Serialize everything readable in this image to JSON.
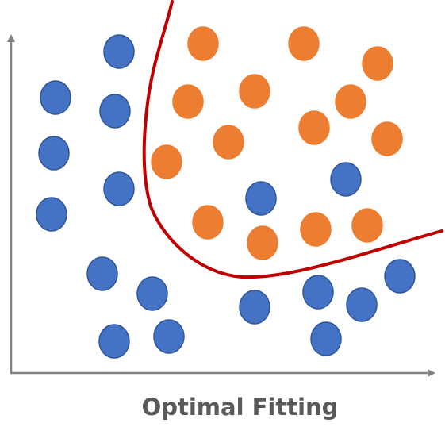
{
  "caption": "Optimal Fitting",
  "colors": {
    "class_a": "#4472C4",
    "class_a_stroke": "#2F5597",
    "class_b": "#ED7D31",
    "boundary": "#C00000",
    "axis": "#808080"
  },
  "points": {
    "class_a": [
      [
        150,
        65
      ],
      [
        70,
        123
      ],
      [
        145,
        140
      ],
      [
        68,
        193
      ],
      [
        150,
        238
      ],
      [
        65,
        270
      ],
      [
        129,
        345
      ],
      [
        192,
        370
      ],
      [
        144,
        430
      ],
      [
        213,
        424
      ],
      [
        321,
        387
      ],
      [
        329,
        250
      ],
      [
        436,
        226
      ],
      [
        401,
        368
      ],
      [
        456,
        384
      ],
      [
        504,
        348
      ],
      [
        411,
        427
      ]
    ],
    "class_b": [
      [
        256,
        55
      ],
      [
        383,
        55
      ],
      [
        476,
        80
      ],
      [
        237,
        128
      ],
      [
        321,
        115
      ],
      [
        442,
        128
      ],
      [
        396,
        161
      ],
      [
        488,
        175
      ],
      [
        288,
        179
      ],
      [
        210,
        204
      ],
      [
        262,
        280
      ],
      [
        331,
        306
      ],
      [
        398,
        289
      ],
      [
        463,
        284
      ]
    ]
  }
}
